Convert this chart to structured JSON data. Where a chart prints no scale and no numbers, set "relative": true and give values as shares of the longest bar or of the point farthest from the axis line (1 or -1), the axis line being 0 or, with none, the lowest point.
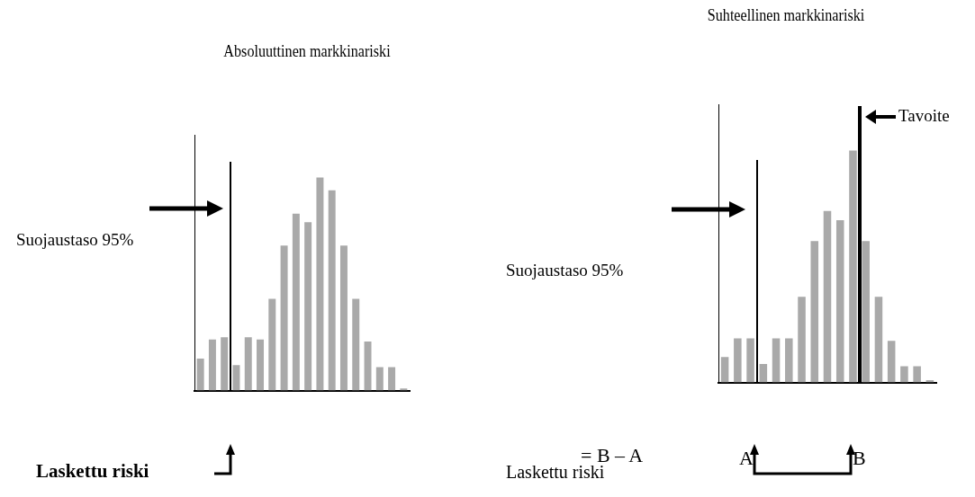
{
  "chart_data": [
    {
      "type": "bar",
      "title": "Absoluuttinen markkinariski",
      "relative": true,
      "categories": [
        null,
        null,
        null,
        null,
        null,
        null,
        null,
        null,
        null,
        null,
        null,
        null,
        null,
        null,
        null,
        null,
        null,
        null
      ],
      "values": [
        0.15,
        0.24,
        0.25,
        0.12,
        0.25,
        0.24,
        0.43,
        0.68,
        0.83,
        0.79,
        1,
        0.94,
        0.68,
        0.43,
        0.23,
        0.11,
        0.11,
        0.01
      ],
      "color": "#a9a9a9",
      "annotations": [
        "Suojaustaso 95%",
        "Laskettu riski"
      ]
    },
    {
      "type": "bar",
      "title": "Suhteellinen markkinariski",
      "relative": true,
      "categories": [
        null,
        null,
        null,
        null,
        null,
        null,
        null,
        null,
        null,
        null,
        null,
        null,
        null,
        null,
        null,
        null,
        null
      ],
      "values": [
        0.11,
        0.19,
        0.19,
        0.08,
        0.19,
        0.19,
        0.37,
        0.61,
        0.74,
        0.7,
        1,
        0.61,
        0.37,
        0.18,
        0.07,
        0.07,
        0.01
      ],
      "color": "#a9a9a9",
      "annotations": [
        "Suojaustaso 95%",
        "Tavoite",
        "Laskettu riski",
        "= B – A",
        "A",
        "B"
      ]
    }
  ]
}
